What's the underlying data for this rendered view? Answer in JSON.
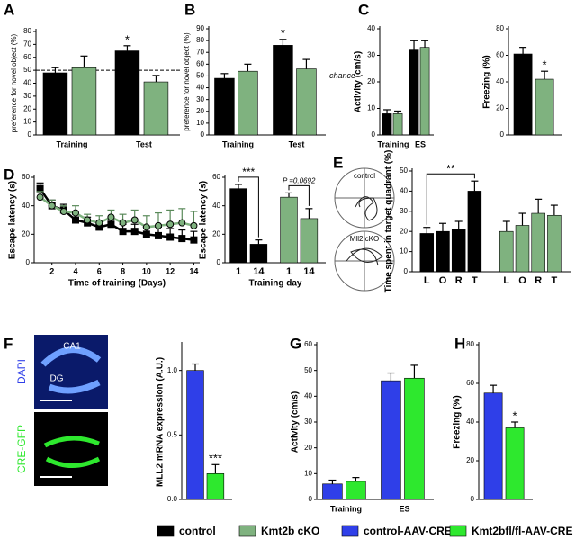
{
  "chart_data": [
    {
      "type": "bar",
      "panel": "A",
      "ylabel": "preference for novel object (%)",
      "categories": [
        "Training",
        "Test"
      ],
      "series": [
        {
          "color": "#000000",
          "values": [
            48,
            65
          ],
          "errors": [
            4,
            4
          ]
        },
        {
          "color": "#7fb27f",
          "values": [
            52,
            41
          ],
          "errors": [
            9,
            5
          ]
        }
      ],
      "ylim": [
        0,
        80
      ],
      "yticks": [
        0,
        10,
        20,
        30,
        40,
        50,
        60,
        70,
        80
      ],
      "reference_line": {
        "value": 50
      },
      "annotations": [
        "*"
      ]
    },
    {
      "type": "bar",
      "panel": "B",
      "ylabel": "preference for novel object (%)",
      "categories": [
        "Training",
        "Test"
      ],
      "series": [
        {
          "color": "#000000",
          "values": [
            48,
            76
          ],
          "errors": [
            4,
            5
          ]
        },
        {
          "color": "#7fb27f",
          "values": [
            54,
            56
          ],
          "errors": [
            6,
            8
          ]
        }
      ],
      "ylim": [
        0,
        90
      ],
      "yticks": [
        0,
        10,
        20,
        30,
        40,
        50,
        60,
        70,
        80,
        90
      ],
      "reference_line": {
        "value": 50,
        "label": "chance"
      },
      "annotations": [
        "*"
      ]
    },
    {
      "type": "bar",
      "panel": "C",
      "ylabel": "Activity (cm/s)",
      "categories": [
        "Training",
        "ES"
      ],
      "series": [
        {
          "color": "#000000",
          "values": [
            8,
            32
          ],
          "errors": [
            1.5,
            3.5
          ]
        },
        {
          "color": "#7fb27f",
          "values": [
            8,
            33
          ],
          "errors": [
            1,
            2.5
          ]
        }
      ],
      "ylim": [
        0,
        40
      ],
      "yticks": [
        0,
        10,
        20,
        30,
        40
      ]
    },
    {
      "type": "bar",
      "ylabel": "Freezing (%)",
      "categories": [
        null
      ],
      "series": [
        {
          "color": "#000000",
          "values": [
            61
          ],
          "errors": [
            5
          ]
        },
        {
          "color": "#7fb27f",
          "values": [
            42
          ],
          "errors": [
            6
          ]
        }
      ],
      "ylim": [
        0,
        80
      ],
      "yticks": [
        0,
        20,
        40,
        60,
        80
      ],
      "annotations": [
        "*"
      ]
    },
    {
      "type": "line",
      "panel": "D",
      "ylabel": "Escape latency (s)",
      "xlabel": "Time of training (Days)",
      "x": [
        1,
        2,
        3,
        4,
        5,
        6,
        7,
        8,
        9,
        10,
        11,
        12,
        13,
        14
      ],
      "series": [
        {
          "color": "#000000",
          "marker": "square",
          "values": [
            52,
            40,
            37,
            30,
            28,
            25,
            27,
            22,
            22,
            20,
            19,
            18,
            17,
            16
          ],
          "errors": [
            4,
            4,
            4,
            4,
            4,
            4,
            5,
            5,
            5,
            5,
            6,
            6,
            6,
            6
          ]
        },
        {
          "color": "#7fb27f",
          "marker": "circle",
          "values": [
            46,
            40,
            36,
            35,
            30,
            28,
            32,
            28,
            30,
            25,
            26,
            27,
            28,
            26
          ],
          "errors": [
            4,
            4,
            4,
            5,
            4,
            5,
            5,
            6,
            7,
            8,
            9,
            10,
            10,
            10
          ]
        }
      ],
      "xlim": [
        0.5,
        14.5
      ],
      "xticks": [
        2,
        4,
        6,
        8,
        10,
        12,
        14
      ],
      "ylim": [
        0,
        60
      ],
      "yticks": [
        0,
        20,
        40,
        60
      ]
    },
    {
      "type": "bar",
      "arrangement": "by-series",
      "ylabel": "Escape latency (s)",
      "xlabel": "Training day",
      "categories": [
        "1",
        "14"
      ],
      "series": [
        {
          "color": "#000000",
          "values": [
            52,
            13
          ],
          "errors": [
            3,
            3
          ]
        },
        {
          "color": "#7fb27f",
          "values": [
            46,
            31
          ],
          "errors": [
            3,
            7
          ]
        }
      ],
      "ylim": [
        0,
        60
      ],
      "yticks": [
        0,
        20,
        40,
        60
      ],
      "annotations": [
        "***",
        "P =0.0692"
      ]
    },
    {
      "type": "bar",
      "panel": "E",
      "arrangement": "by-series",
      "ylabel": "Time spent  in target quadrant (%)",
      "categories": [
        "L",
        "O",
        "R",
        "T"
      ],
      "series": [
        {
          "color": "#000000",
          "values": [
            19,
            20,
            21,
            40
          ],
          "errors": [
            3,
            4,
            4,
            5
          ]
        },
        {
          "color": "#7fb27f",
          "values": [
            20,
            23,
            29,
            28
          ],
          "errors": [
            5,
            6,
            7,
            5
          ]
        }
      ],
      "ylim": [
        0,
        50
      ],
      "yticks": [
        0,
        10,
        20,
        30,
        40,
        50
      ],
      "annotations": [
        "**"
      ],
      "images": [
        "control",
        "Mll2 cKO"
      ]
    },
    {
      "type": "bar",
      "panel": "F",
      "ylabel": "MLL2 mRNA expression (A.U.)",
      "categories": [
        null
      ],
      "series": [
        {
          "color": "#2f3fe8",
          "values": [
            1.0
          ],
          "errors": [
            0.05
          ]
        },
        {
          "color": "#2ee82e",
          "values": [
            0.2
          ],
          "errors": [
            0.07
          ]
        }
      ],
      "ylim": [
        0,
        1.2
      ],
      "yticks": [
        {
          "value": 0,
          "label": "0.0"
        },
        0.5,
        {
          "value": 1,
          "label": "1.0"
        }
      ],
      "annotations": [
        "***"
      ],
      "images": [
        "DAPI",
        "CA1",
        "DG",
        "CRE-GFP"
      ]
    },
    {
      "type": "bar",
      "panel": "G",
      "ylabel": "Activity (cm/s)",
      "categories": [
        "Training",
        "ES"
      ],
      "series": [
        {
          "color": "#2f3fe8",
          "values": [
            6,
            46
          ],
          "errors": [
            1.5,
            3
          ]
        },
        {
          "color": "#2ee82e",
          "values": [
            7,
            47
          ],
          "errors": [
            1.5,
            5
          ]
        }
      ],
      "ylim": [
        0,
        60
      ],
      "yticks": [
        0,
        10,
        20,
        30,
        40,
        50,
        60
      ]
    },
    {
      "type": "bar",
      "panel": "H",
      "ylabel": "Freezing (%)",
      "categories": [
        null
      ],
      "series": [
        {
          "color": "#2f3fe8",
          "values": [
            55
          ],
          "errors": [
            4
          ]
        },
        {
          "color": "#2ee82e",
          "values": [
            37
          ],
          "errors": [
            3
          ]
        }
      ],
      "ylim": [
        0,
        80
      ],
      "yticks": [
        0,
        20,
        40,
        60,
        80
      ],
      "annotations": [
        "*"
      ]
    }
  ],
  "legend": [
    {
      "name": "control",
      "color": "#000000"
    },
    {
      "name": "Kmt2b cKO",
      "color": "#7fb27f"
    },
    {
      "name": "control-AAV-CRE",
      "color": "#2f3fe8"
    },
    {
      "name": "Kmt2bfl/fl-AAV-CRE",
      "color": "#2ee82e"
    }
  ]
}
